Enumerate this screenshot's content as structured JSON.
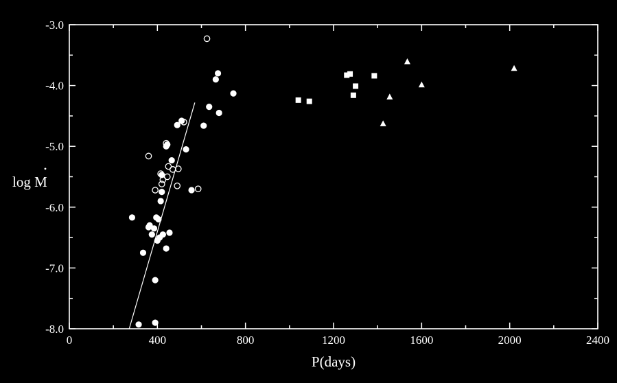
{
  "chart_data": {
    "type": "scatter",
    "title": "",
    "xlabel": "P(days)",
    "ylabel": "log M",
    "ylabel_dot": "•",
    "xlim": [
      0,
      2400
    ],
    "ylim": [
      -8.0,
      -3.0
    ],
    "x_ticks": [
      {
        "value": 0,
        "label": "0"
      },
      {
        "value": 400,
        "label": "400"
      },
      {
        "value": 800,
        "label": "800"
      },
      {
        "value": 1200,
        "label": "1200"
      },
      {
        "value": 1600,
        "label": "1600"
      },
      {
        "value": 2000,
        "label": "2000"
      },
      {
        "value": 2400,
        "label": "2400"
      }
    ],
    "y_ticks": [
      {
        "value": -3.0,
        "label": "-3.0"
      },
      {
        "value": -4.0,
        "label": "-4.0"
      },
      {
        "value": -5.0,
        "label": "-5.0"
      },
      {
        "value": -6.0,
        "label": "-6.0"
      },
      {
        "value": -7.0,
        "label": "-7.0"
      },
      {
        "value": -8.0,
        "label": "-8.0"
      }
    ],
    "grid": false,
    "colors": {
      "background": "#000000",
      "foreground": "#ffffff"
    },
    "fit_line": {
      "x": [
        272,
        570
      ],
      "y": [
        -8.0,
        -4.28
      ]
    },
    "series": [
      {
        "marker": "filled-circle",
        "x": [
          285,
          335,
          360,
          365,
          375,
          385,
          395,
          400,
          405,
          410,
          415,
          420,
          420,
          425,
          440,
          440,
          445,
          455,
          465,
          490,
          510,
          530,
          555,
          610,
          635,
          665,
          675,
          680,
          745,
          315,
          390,
          390
        ],
        "y": [
          -6.17,
          -6.75,
          -6.33,
          -6.3,
          -6.45,
          -6.35,
          -6.17,
          -6.55,
          -6.2,
          -6.5,
          -5.9,
          -5.75,
          -5.47,
          -6.45,
          -5.0,
          -6.68,
          -4.97,
          -6.42,
          -5.23,
          -4.65,
          -4.58,
          -5.05,
          -5.72,
          -4.66,
          -4.35,
          -3.9,
          -3.8,
          -4.45,
          -4.13,
          -7.93,
          -7.2,
          -7.9
        ]
      },
      {
        "marker": "open-circle",
        "x": [
          360,
          390,
          415,
          420,
          425,
          440,
          445,
          450,
          470,
          490,
          495,
          520,
          585,
          625
        ],
        "y": [
          -5.16,
          -5.72,
          -5.45,
          -5.62,
          -5.55,
          -4.95,
          -5.5,
          -5.33,
          -5.38,
          -5.65,
          -5.37,
          -4.6,
          -5.7,
          -3.23
        ]
      },
      {
        "marker": "filled-square",
        "x": [
          1040,
          1090,
          1260,
          1275,
          1290,
          1300,
          1385
        ],
        "y": [
          -4.24,
          -4.26,
          -3.83,
          -3.81,
          -4.16,
          -4.01,
          -3.84
        ]
      },
      {
        "marker": "filled-triangle",
        "x": [
          1425,
          1455,
          1535,
          1600,
          2020
        ],
        "y": [
          -4.63,
          -4.19,
          -3.61,
          -3.99,
          -3.72
        ]
      }
    ]
  }
}
